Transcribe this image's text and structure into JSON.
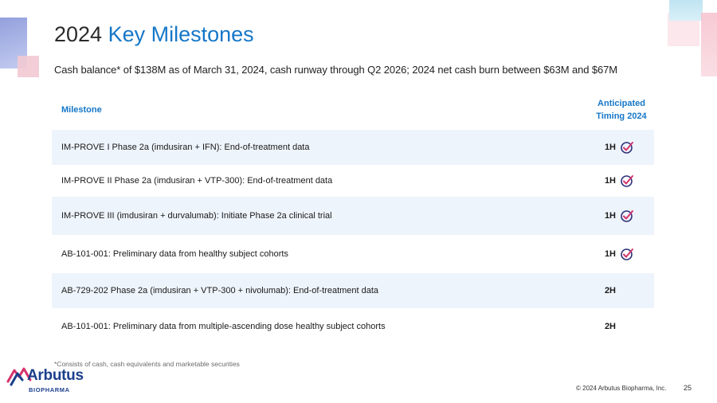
{
  "title": {
    "year": "2024",
    "accent": "Key Milestones"
  },
  "subtitle": "Cash balance* of $138M as of March 31, 2024, cash runway through Q2 2026; 2024 net cash burn between $63M and $67M",
  "table": {
    "header": {
      "milestone": "Milestone",
      "timing_line1": "Anticipated",
      "timing_line2": "Timing 2024"
    },
    "rows": [
      {
        "label": "IM-PROVE I Phase 2a (imdusiran + IFN):  End-of-treatment data",
        "timing": "1H",
        "completed": true
      },
      {
        "label": "IM-PROVE II Phase 2a (imdusiran + VTP-300):  End-of-treatment data",
        "timing": "1H",
        "completed": true
      },
      {
        "label": "IM-PROVE III (imdusiran + durvalumab):  Initiate Phase 2a clinical trial",
        "timing": "1H",
        "completed": true
      },
      {
        "label": "AB-101-001: Preliminary data from healthy subject cohorts",
        "timing": "1H",
        "completed": true
      },
      {
        "label": "AB-729-202 Phase 2a (imdusiran + VTP-300 + nivolumab):  End-of-treatment data",
        "timing": "2H",
        "completed": false
      },
      {
        "label": "AB-101-001: Preliminary data from multiple-ascending dose healthy subject cohorts",
        "timing": "2H",
        "completed": false
      }
    ]
  },
  "footnote": "*Consists of cash, cash equivalents and marketable securities",
  "logo": {
    "name": "Arbutus",
    "sub": "BIOPHARMA"
  },
  "footer": {
    "copyright": "© 2024 Arbutus Biopharma, Inc.",
    "page": "25"
  },
  "colors": {
    "accent": "#1577c8",
    "row_shade": "#eef4fb",
    "check": "#2d2f7a",
    "check_accent": "#d6336c"
  }
}
